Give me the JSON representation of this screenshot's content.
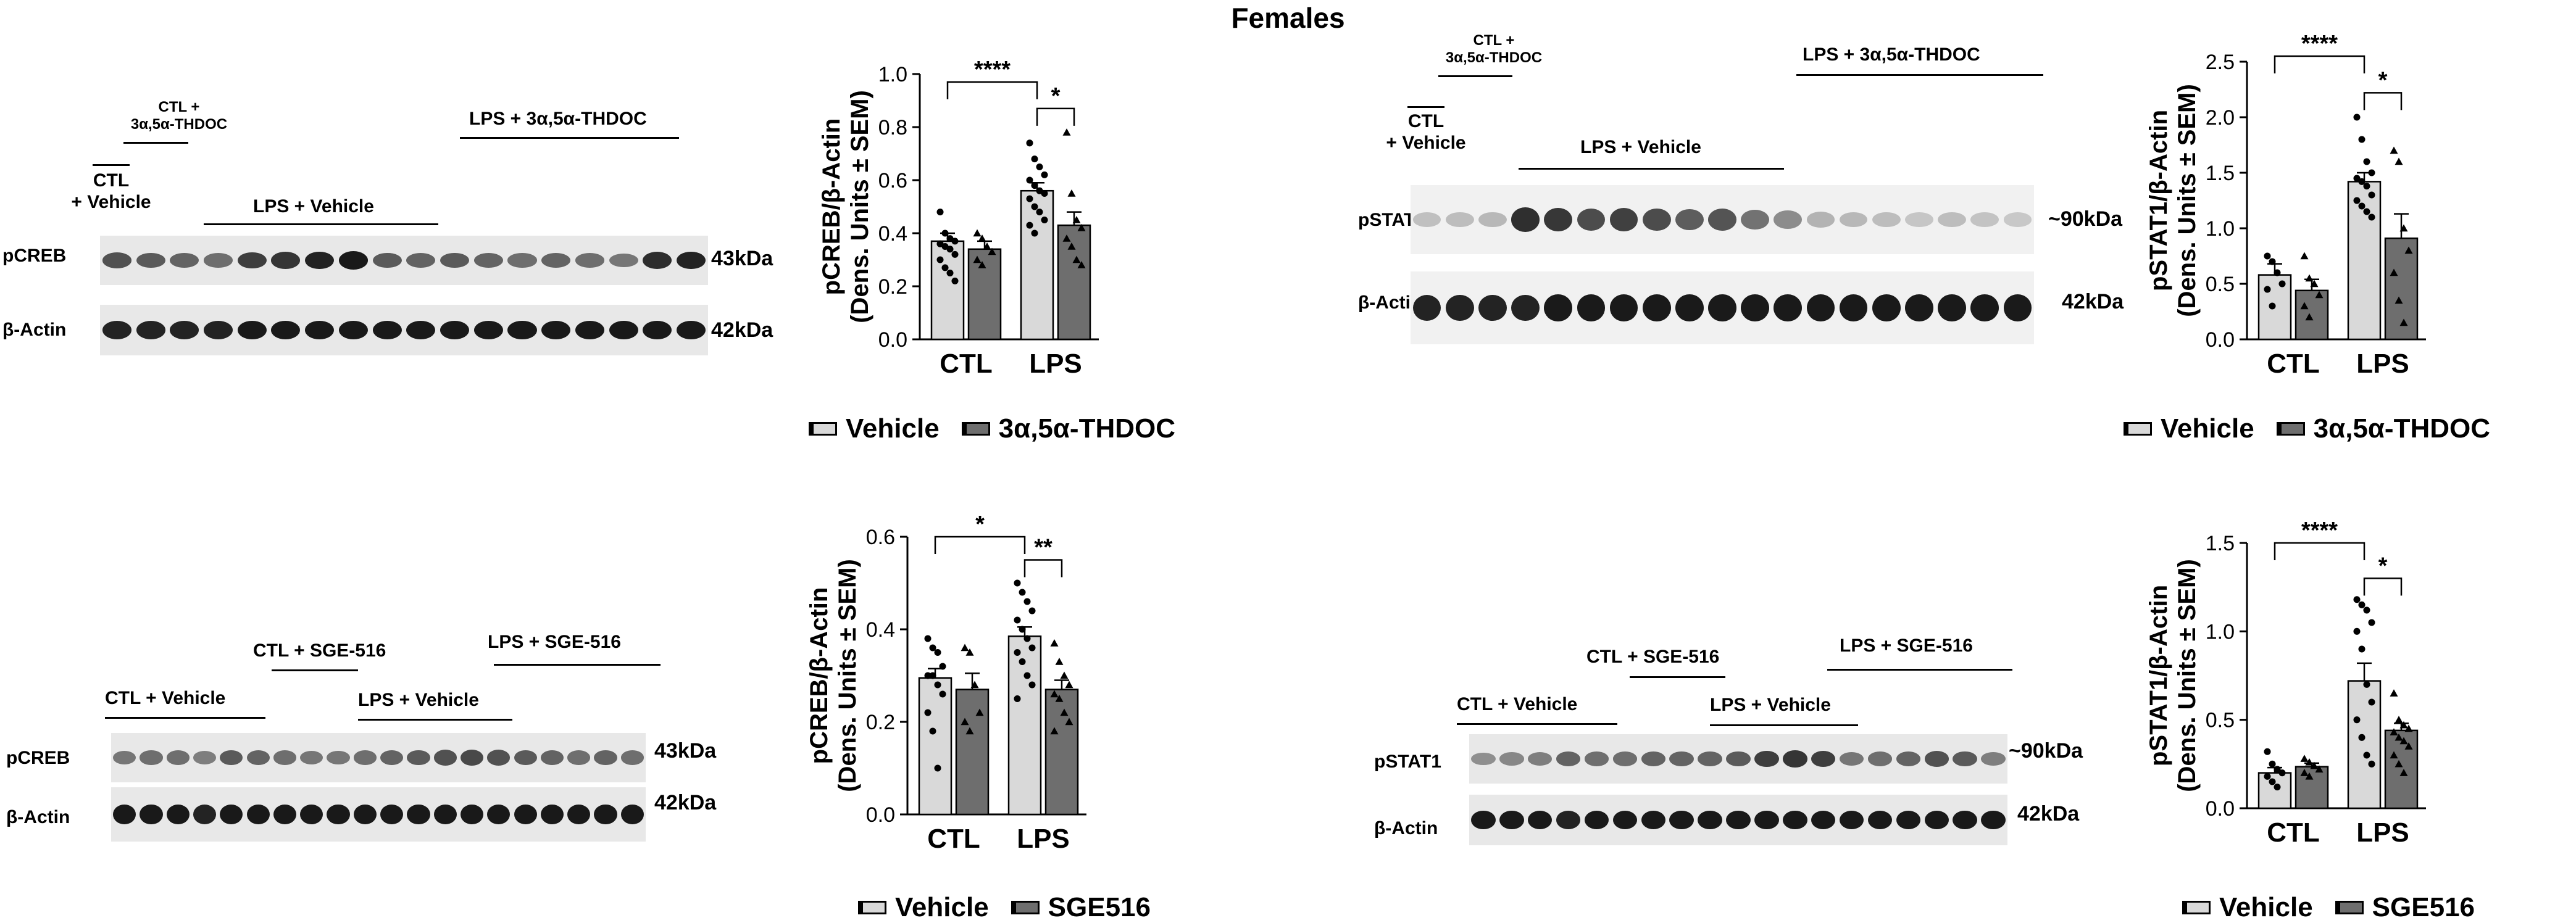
{
  "title": "Females",
  "colors": {
    "vehicle": "#d9d9d9",
    "treatment": "#6e6e6e",
    "band": "#111111",
    "lane_bg": "#e8e8e8"
  },
  "blots": [
    {
      "id": "tl",
      "labels": {
        "ctl_treat": "CTL +\n3α,5α-THDOC",
        "ctl_vehicle": "CTL\n+ Vehicle",
        "lps_vehicle": "LPS + Vehicle",
        "lps_treat": "LPS +  3α,5α-THDOC"
      },
      "rows": [
        {
          "name": "pCREB",
          "kda": "43kDa",
          "intensity": [
            0.65,
            0.6,
            0.55,
            0.5,
            0.75,
            0.8,
            0.9,
            0.95,
            0.6,
            0.55,
            0.6,
            0.55,
            0.5,
            0.55,
            0.5,
            0.45,
            0.85,
            0.9
          ]
        },
        {
          "name": "β-Actin",
          "kda": "42kDa",
          "intensity": [
            0.9,
            0.9,
            0.9,
            0.9,
            0.95,
            0.95,
            0.95,
            0.95,
            0.95,
            0.95,
            0.95,
            0.95,
            0.95,
            0.95,
            0.95,
            0.95,
            0.95,
            0.95
          ]
        }
      ]
    },
    {
      "id": "tr",
      "labels": {
        "ctl_treat": "CTL +\n3α,5α-THDOC",
        "ctl_vehicle": "CTL\n+ Vehicle",
        "lps_vehicle": "LPS + Vehicle",
        "lps_treat": "LPS +  3α,5α-THDOC"
      },
      "rows": [
        {
          "name": "pSTAT1",
          "kda": "~90kDa",
          "intensity": [
            0.08,
            0.1,
            0.12,
            0.85,
            0.8,
            0.7,
            0.75,
            0.7,
            0.6,
            0.65,
            0.5,
            0.35,
            0.15,
            0.12,
            0.1,
            0.05,
            0.1,
            0.06,
            0.04
          ]
        },
        {
          "name": "β-Actin",
          "kda": "42kDa",
          "intensity": [
            0.9,
            0.9,
            0.9,
            0.9,
            0.95,
            0.95,
            0.95,
            0.95,
            0.95,
            0.95,
            0.95,
            0.95,
            0.95,
            0.95,
            0.95,
            0.95,
            0.95,
            0.95,
            0.95
          ]
        }
      ]
    },
    {
      "id": "bl",
      "labels": {
        "ctl_treat": "CTL + SGE-516",
        "ctl_vehicle": "CTL + Vehicle",
        "lps_vehicle": "LPS + Vehicle",
        "lps_treat": "LPS + SGE-516"
      },
      "rows": [
        {
          "name": "pCREB",
          "kda": "43kDa",
          "intensity": [
            0.45,
            0.5,
            0.5,
            0.4,
            0.6,
            0.55,
            0.5,
            0.45,
            0.45,
            0.5,
            0.55,
            0.6,
            0.65,
            0.7,
            0.65,
            0.6,
            0.55,
            0.5,
            0.55,
            0.5
          ]
        },
        {
          "name": "β-Actin",
          "kda": "42kDa",
          "intensity": [
            0.95,
            0.95,
            0.95,
            0.9,
            0.95,
            0.95,
            0.95,
            0.95,
            0.95,
            0.95,
            0.95,
            0.95,
            0.95,
            0.95,
            0.95,
            0.95,
            0.95,
            0.95,
            0.95,
            0.95
          ]
        }
      ]
    },
    {
      "id": "br",
      "labels": {
        "ctl_treat": "CTL + SGE-516",
        "ctl_vehicle": "CTL + Vehicle",
        "lps_vehicle": "LPS + Vehicle",
        "lps_treat": "LPS + SGE-516"
      },
      "rows": [
        {
          "name": "pSTAT1",
          "kda": "~90kDa",
          "intensity": [
            0.3,
            0.35,
            0.4,
            0.55,
            0.5,
            0.5,
            0.55,
            0.55,
            0.55,
            0.6,
            0.75,
            0.8,
            0.75,
            0.45,
            0.5,
            0.55,
            0.65,
            0.6,
            0.4
          ]
        },
        {
          "name": "β-Actin",
          "kda": "42kDa",
          "intensity": [
            0.95,
            0.95,
            0.95,
            0.9,
            0.95,
            0.95,
            0.95,
            0.95,
            0.95,
            0.95,
            0.95,
            0.95,
            0.95,
            0.95,
            0.95,
            0.95,
            0.95,
            0.95,
            0.95
          ]
        }
      ]
    }
  ],
  "chart_data": [
    {
      "type": "bar",
      "id": "c1",
      "categories": [
        "CTL",
        "LPS"
      ],
      "ylabel": "pCREB/β-Actin\n(Dens. Units ± SEM)",
      "ylim": [
        0,
        1.0
      ],
      "yticks": [
        "0.0",
        "0.2",
        "0.4",
        "0.6",
        "0.8",
        "1.0"
      ],
      "series": [
        {
          "name": "Vehicle",
          "values": [
            0.37,
            0.56
          ],
          "sem": [
            0.03,
            0.03
          ],
          "points": [
            [
              0.48,
              0.4,
              0.38,
              0.37,
              0.36,
              0.35,
              0.34,
              0.32,
              0.3,
              0.27,
              0.25,
              0.22
            ],
            [
              0.74,
              0.68,
              0.65,
              0.62,
              0.6,
              0.58,
              0.56,
              0.55,
              0.53,
              0.5,
              0.48,
              0.45,
              0.43,
              0.4
            ]
          ]
        },
        {
          "name": "3α,5α-THDOC",
          "values": [
            0.34,
            0.43
          ],
          "sem": [
            0.03,
            0.05
          ],
          "points": [
            [
              0.4,
              0.38,
              0.35,
              0.33,
              0.3,
              0.28
            ],
            [
              0.78,
              0.55,
              0.45,
              0.42,
              0.38,
              0.35,
              0.3,
              0.28
            ]
          ]
        }
      ],
      "significance": [
        {
          "from": [
            0,
            0
          ],
          "to": [
            1,
            0
          ],
          "label": "****",
          "y": 0.97
        },
        {
          "from": [
            1,
            0
          ],
          "to": [
            1,
            1
          ],
          "label": "*",
          "y": 0.87
        }
      ],
      "legend": [
        "Vehicle",
        "3α,5α-THDOC"
      ]
    },
    {
      "type": "bar",
      "id": "c2",
      "categories": [
        "CTL",
        "LPS"
      ],
      "ylabel": "pSTAT1/β-Actin\n(Dens. Units ± SEM)",
      "ylim": [
        0,
        2.5
      ],
      "yticks": [
        "0.0",
        "0.5",
        "1.0",
        "1.5",
        "2.0",
        "2.5"
      ],
      "series": [
        {
          "name": "Vehicle",
          "values": [
            0.58,
            1.42
          ],
          "sem": [
            0.1,
            0.08
          ],
          "points": [
            [
              0.75,
              0.7,
              0.6,
              0.5,
              0.45,
              0.3
            ],
            [
              2.0,
              1.8,
              1.6,
              1.5,
              1.45,
              1.42,
              1.38,
              1.3,
              1.25,
              1.2,
              1.15,
              1.1
            ]
          ]
        },
        {
          "name": "3α,5α-THDOC",
          "values": [
            0.44,
            0.91
          ],
          "sem": [
            0.1,
            0.22
          ],
          "points": [
            [
              0.75,
              0.55,
              0.5,
              0.4,
              0.3,
              0.2
            ],
            [
              1.7,
              1.6,
              1.0,
              0.8,
              0.6,
              0.35,
              0.15
            ]
          ]
        }
      ],
      "significance": [
        {
          "from": [
            0,
            0
          ],
          "to": [
            1,
            0
          ],
          "label": "****",
          "y": 2.55
        },
        {
          "from": [
            1,
            0
          ],
          "to": [
            1,
            1
          ],
          "label": "*",
          "y": 2.22
        }
      ],
      "legend": [
        "Vehicle",
        "3α,5α-THDOC"
      ]
    },
    {
      "type": "bar",
      "id": "c3",
      "categories": [
        "CTL",
        "LPS"
      ],
      "ylabel": "pCREB/β-Actin\n(Dens. Units ± SEM)",
      "ylim": [
        0,
        0.6
      ],
      "yticks": [
        "0.0",
        "0.2",
        "0.4",
        "0.6"
      ],
      "series": [
        {
          "name": "Vehicle",
          "values": [
            0.295,
            0.385
          ],
          "sem": [
            0.02,
            0.02
          ],
          "points": [
            [
              0.38,
              0.36,
              0.35,
              0.32,
              0.3,
              0.3,
              0.28,
              0.26,
              0.22,
              0.18,
              0.1
            ],
            [
              0.5,
              0.48,
              0.46,
              0.44,
              0.42,
              0.4,
              0.38,
              0.36,
              0.35,
              0.33,
              0.3,
              0.28,
              0.25
            ]
          ]
        },
        {
          "name": "SGE516",
          "values": [
            0.27,
            0.27
          ],
          "sem": [
            0.035,
            0.02
          ],
          "points": [
            [
              0.36,
              0.35,
              0.28,
              0.22,
              0.2,
              0.18
            ],
            [
              0.37,
              0.33,
              0.3,
              0.28,
              0.26,
              0.25,
              0.22,
              0.2,
              0.18
            ]
          ]
        }
      ],
      "significance": [
        {
          "from": [
            0,
            0
          ],
          "to": [
            1,
            0
          ],
          "label": "*",
          "y": 0.6
        },
        {
          "from": [
            1,
            0
          ],
          "to": [
            1,
            1
          ],
          "label": "**",
          "y": 0.55
        }
      ],
      "legend": [
        "Vehicle",
        "SGE516"
      ]
    },
    {
      "type": "bar",
      "id": "c4",
      "categories": [
        "CTL",
        "LPS"
      ],
      "ylabel": "pSTAT1/β-Actin\n(Dens. Units ± SEM)",
      "ylim": [
        0,
        1.5
      ],
      "yticks": [
        "0.0",
        "0.5",
        "1.0",
        "1.5"
      ],
      "series": [
        {
          "name": "Vehicle",
          "values": [
            0.2,
            0.72
          ],
          "sem": [
            0.03,
            0.1
          ],
          "points": [
            [
              0.32,
              0.25,
              0.22,
              0.2,
              0.18,
              0.15,
              0.12
            ],
            [
              1.18,
              1.15,
              1.12,
              1.05,
              1.0,
              0.9,
              0.7,
              0.6,
              0.5,
              0.4,
              0.3,
              0.25
            ]
          ]
        },
        {
          "name": "SGE516",
          "values": [
            0.235,
            0.44
          ],
          "sem": [
            0.02,
            0.04
          ],
          "points": [
            [
              0.28,
              0.26,
              0.24,
              0.22,
              0.2,
              0.18
            ],
            [
              0.65,
              0.5,
              0.47,
              0.45,
              0.43,
              0.4,
              0.38,
              0.35,
              0.3,
              0.25,
              0.2
            ]
          ]
        }
      ],
      "significance": [
        {
          "from": [
            0,
            0
          ],
          "to": [
            1,
            0
          ],
          "label": "****",
          "y": 1.5
        },
        {
          "from": [
            1,
            0
          ],
          "to": [
            1,
            1
          ],
          "label": "*",
          "y": 1.3
        }
      ],
      "legend": [
        "Vehicle",
        "SGE516"
      ]
    }
  ]
}
